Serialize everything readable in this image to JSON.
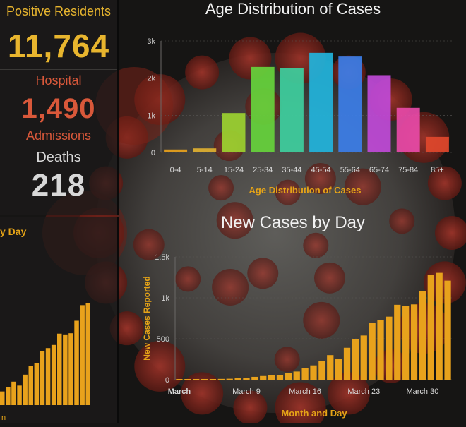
{
  "stats": {
    "positive_label": "Positive Residents",
    "positive_value": "11,764",
    "hospital_label": "Hospital",
    "hospital_value": "1,490",
    "admissions_label": "Admissions",
    "deaths_label": "Deaths",
    "deaths_value": "218"
  },
  "left_chart": {
    "title_fragment": "y Day",
    "x_fragment": "n"
  },
  "colors": {
    "gold": "#e6a417",
    "positive": "#e8b52e",
    "hospital": "#d9583a",
    "deaths": "#d8d8d8",
    "bar_orange": "#e8a21c"
  },
  "chart_data": [
    {
      "type": "bar",
      "title": "Age Distribution of Cases",
      "xlabel": "Age Distribution of Cases",
      "ylabel": "",
      "ylim": [
        0,
        3000
      ],
      "yticks": [
        0,
        1000,
        2000,
        3000
      ],
      "ytick_labels": [
        "0",
        "1k",
        "2k",
        "3k"
      ],
      "categories": [
        "0-4",
        "5-14",
        "15-24",
        "25-34",
        "35-44",
        "45-54",
        "55-64",
        "65-74",
        "75-84",
        "85+"
      ],
      "values": [
        80,
        110,
        1060,
        2300,
        2260,
        2680,
        2580,
        2080,
        1200,
        420
      ],
      "colors": [
        "#e8a21c",
        "#e0b030",
        "#9cd230",
        "#66d43c",
        "#3ecf9e",
        "#22b4dc",
        "#3c7ee8",
        "#c04ad8",
        "#e84aa8",
        "#e0482c"
      ]
    },
    {
      "type": "bar",
      "title": "New Cases by Day",
      "xlabel": "Month and Day",
      "ylabel": "New Cases Reported",
      "ylim": [
        0,
        1500
      ],
      "yticks": [
        0,
        500,
        1000,
        1500
      ],
      "ytick_labels": [
        "0",
        "500",
        "1k",
        "1.5k"
      ],
      "x_tick_labels": [
        "March",
        "March 9",
        "March 16",
        "March 23",
        "March 30"
      ],
      "x_tick_positions": [
        1,
        9,
        16,
        23,
        30
      ],
      "x": [
        1,
        2,
        3,
        4,
        5,
        6,
        7,
        8,
        9,
        10,
        11,
        12,
        13,
        14,
        15,
        16,
        17,
        18,
        19,
        20,
        21,
        22,
        23,
        24,
        25,
        26,
        27,
        28,
        29,
        30,
        31,
        32,
        33
      ],
      "values": [
        2,
        3,
        4,
        5,
        8,
        10,
        12,
        18,
        25,
        35,
        45,
        55,
        60,
        80,
        100,
        140,
        175,
        230,
        300,
        250,
        390,
        500,
        540,
        690,
        730,
        770,
        915,
        905,
        920,
        1080,
        1280,
        1305,
        1210
      ]
    }
  ]
}
